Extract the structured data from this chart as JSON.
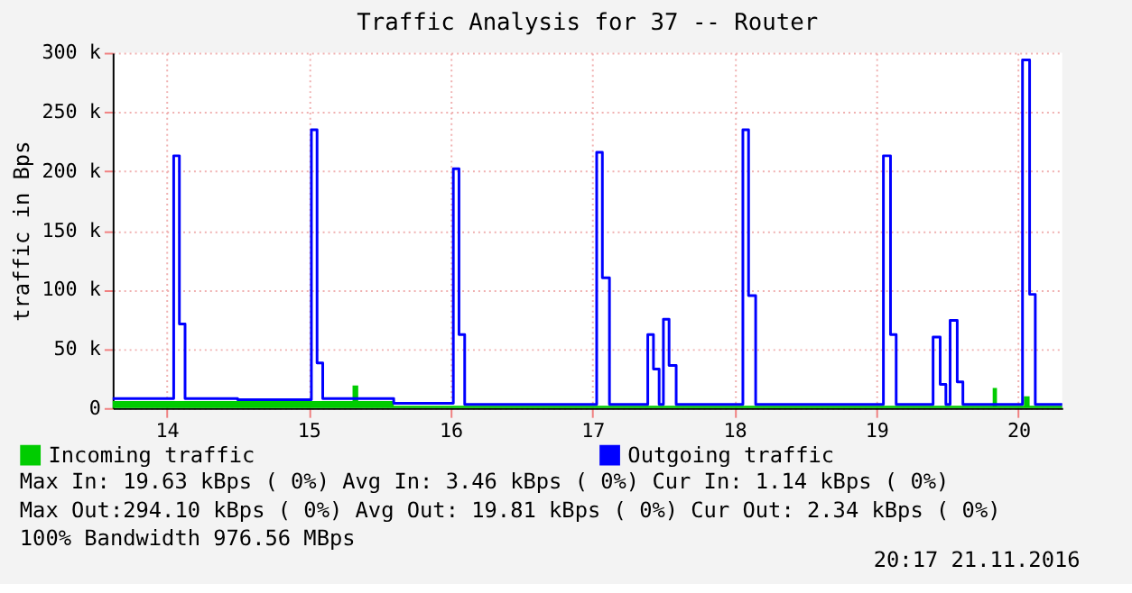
{
  "chart_data": {
    "type": "step",
    "title": "Traffic Analysis for 37 -- Router",
    "ylabel": "traffic in Bps",
    "xlim": [
      13.62,
      20.31
    ],
    "xticks": [
      14,
      15,
      16,
      17,
      18,
      19,
      20
    ],
    "ylim": [
      0,
      300000
    ],
    "yticks": [
      0,
      {
        "value": 50000,
        "label": "50 k"
      },
      {
        "value": 100000,
        "label": "100 k"
      },
      {
        "value": 150000,
        "label": "150 k"
      },
      {
        "value": 200000,
        "label": "200 k"
      },
      {
        "value": 250000,
        "label": "250 k"
      },
      {
        "value": 300000,
        "label": "300 k"
      }
    ],
    "grid": true,
    "legend": "bottom left",
    "series": [
      {
        "name": "Incoming traffic",
        "color": "#00cc00",
        "type": "area",
        "x": [
          13.62,
          15.31,
          15.35,
          15.6,
          19.82,
          19.85,
          20.04,
          20.08,
          20.31
        ],
        "values": [
          6000,
          19000,
          6000,
          2000,
          17000,
          2000,
          10000,
          2000,
          2000
        ]
      },
      {
        "name": "Outgoing traffic",
        "color": "#0000ff",
        "x": [
          13.62,
          14.05,
          14.09,
          14.13,
          14.5,
          15.02,
          15.06,
          15.1,
          15.6,
          16.02,
          16.06,
          16.1,
          17.03,
          17.07,
          17.12,
          17.39,
          17.43,
          17.47,
          17.5,
          17.54,
          17.59,
          18.06,
          18.1,
          18.15,
          19.05,
          19.1,
          19.14,
          19.4,
          19.45,
          19.49,
          19.52,
          19.57,
          19.61,
          20.03,
          20.08,
          20.12,
          20.31
        ],
        "values": [
          8000,
          213000,
          71000,
          8000,
          7000,
          235000,
          38000,
          8000,
          4000,
          202000,
          62000,
          3000,
          216000,
          110000,
          3000,
          62000,
          33000,
          3000,
          75000,
          36000,
          3000,
          235000,
          95000,
          3000,
          213000,
          62000,
          3000,
          60000,
          20000,
          3000,
          74000,
          22000,
          3000,
          294000,
          96000,
          3000,
          3000
        ]
      }
    ],
    "annotations": [
      "Max In:  19.63 kBps ( 0%)  Avg In:   3.46 kBps ( 0%)  Cur In:   1.14 kBps ( 0%)",
      "Max Out:294.10 kBps ( 0%)  Avg Out: 19.81 kBps ( 0%)  Cur Out:  2.34 kBps ( 0%)",
      "100% Bandwidth 976.56 MBps",
      "20:17 21.11.2016"
    ]
  }
}
